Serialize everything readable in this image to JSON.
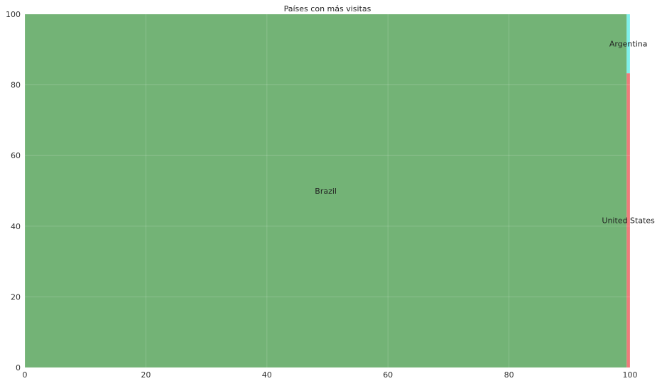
{
  "chart_data": {
    "type": "treemap",
    "title": "Países con más visitas",
    "xlim": [
      0,
      100
    ],
    "ylim": [
      0,
      100
    ],
    "xticks": [
      "0",
      "20",
      "40",
      "60",
      "80",
      "100"
    ],
    "yticks": [
      "0",
      "20",
      "40",
      "60",
      "80",
      "100"
    ],
    "grid": true,
    "rects": [
      {
        "label": "Brazil",
        "x": 0,
        "y": 0,
        "dx": 99.45,
        "dy": 100,
        "color": "#73b376"
      },
      {
        "label": "United States",
        "x": 99.45,
        "y": 0,
        "dx": 0.55,
        "dy": 83.3,
        "color": "#ef7b7b"
      },
      {
        "label": "Argentina",
        "x": 99.45,
        "y": 83.3,
        "dx": 0.55,
        "dy": 16.7,
        "color": "#7ff0ea"
      }
    ]
  }
}
